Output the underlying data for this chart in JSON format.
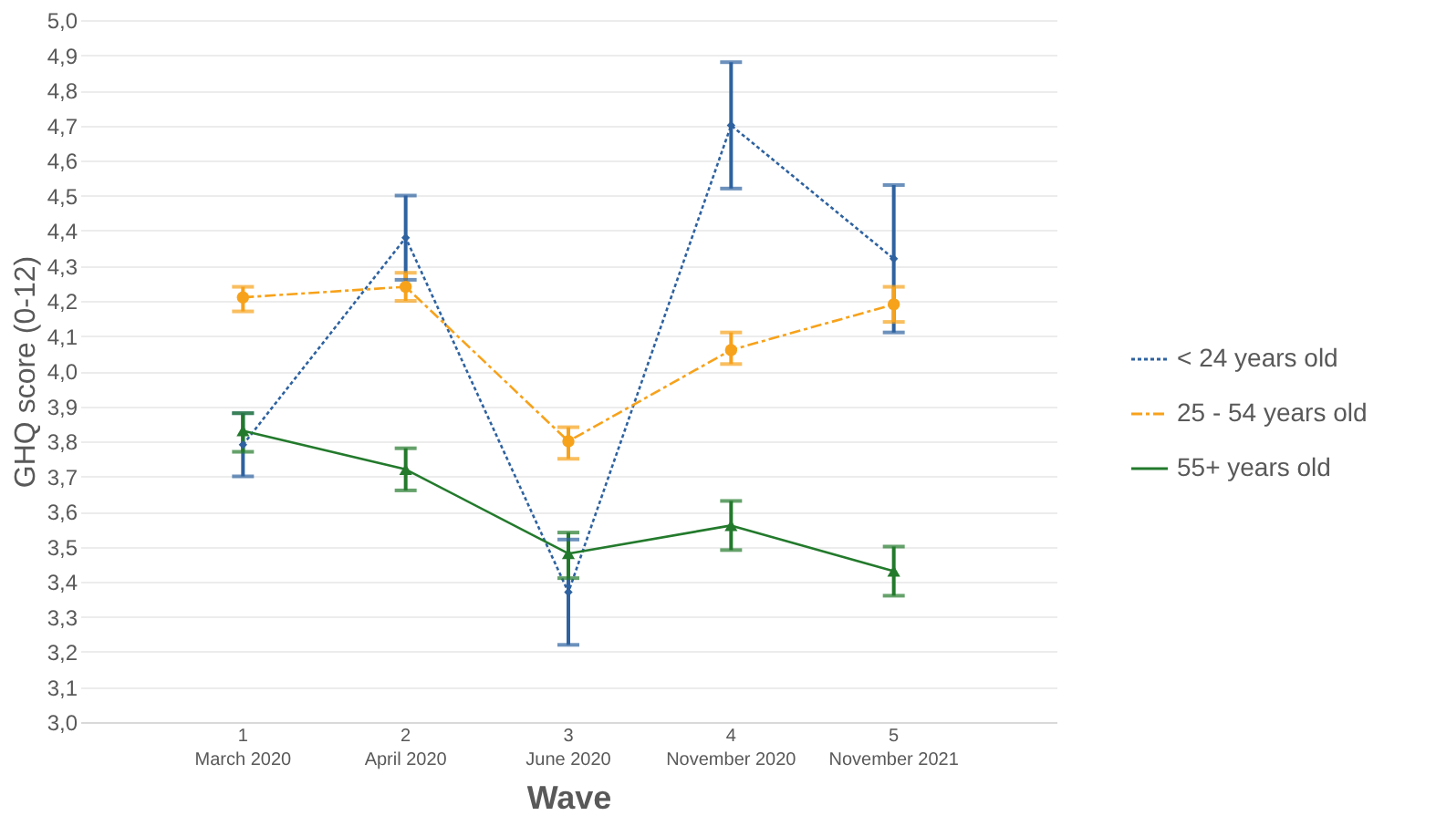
{
  "chart_data": {
    "type": "line",
    "xlabel": "Wave",
    "ylabel": "GHQ score (0-12)",
    "categories": [
      "1\nMarch 2020",
      "2\nApril 2020",
      "3\nJune 2020",
      "4\nNovember 2020",
      "5\nNovember 2021"
    ],
    "ylim": [
      3.0,
      5.0
    ],
    "yticks": [
      {
        "value": 3.0,
        "label": "3,0"
      },
      {
        "value": 3.1,
        "label": "3,1"
      },
      {
        "value": 3.2,
        "label": "3,2"
      },
      {
        "value": 3.3,
        "label": "3,3"
      },
      {
        "value": 3.4,
        "label": "3,4"
      },
      {
        "value": 3.5,
        "label": "3,5"
      },
      {
        "value": 3.6,
        "label": "3,6"
      },
      {
        "value": 3.7,
        "label": "3,7"
      },
      {
        "value": 3.8,
        "label": "3,8"
      },
      {
        "value": 3.9,
        "label": "3,9"
      },
      {
        "value": 4.0,
        "label": "4,0"
      },
      {
        "value": 4.1,
        "label": "4,1"
      },
      {
        "value": 4.2,
        "label": "4,2"
      },
      {
        "value": 4.3,
        "label": "4,3"
      },
      {
        "value": 4.4,
        "label": "4,4"
      },
      {
        "value": 4.5,
        "label": "4,5"
      },
      {
        "value": 4.6,
        "label": "4,6"
      },
      {
        "value": 4.7,
        "label": "4,7"
      },
      {
        "value": 4.8,
        "label": "4,8"
      },
      {
        "value": 4.9,
        "label": "4,9"
      },
      {
        "value": 5.0,
        "label": "5,0"
      }
    ],
    "grid": "y",
    "legend": "right",
    "series": [
      {
        "name": "< 24 years old",
        "color": "#2e62a0",
        "marker": "diamond",
        "line_style": "dotted",
        "values": [
          3.79,
          4.38,
          3.37,
          4.7,
          4.32
        ],
        "errors": [
          [
            3.7,
            3.88
          ],
          [
            4.26,
            4.5
          ],
          [
            3.22,
            3.52
          ],
          [
            4.52,
            4.88
          ],
          [
            4.11,
            4.53
          ]
        ]
      },
      {
        "name": "25 - 54 years old",
        "color": "#f7a21b",
        "marker": "circle",
        "line_style": "dashed",
        "values": [
          4.21,
          4.24,
          3.8,
          4.06,
          4.19
        ],
        "errors": [
          [
            4.17,
            4.24
          ],
          [
            4.2,
            4.28
          ],
          [
            3.75,
            3.84
          ],
          [
            4.02,
            4.11
          ],
          [
            4.14,
            4.24
          ]
        ]
      },
      {
        "name": "55+ years old",
        "color": "#237a2c",
        "marker": "triangle",
        "line_style": "solid",
        "values": [
          3.83,
          3.72,
          3.48,
          3.56,
          3.43
        ],
        "errors": [
          [
            3.77,
            3.88
          ],
          [
            3.66,
            3.78
          ],
          [
            3.41,
            3.54
          ],
          [
            3.49,
            3.63
          ],
          [
            3.36,
            3.5
          ]
        ]
      }
    ]
  }
}
